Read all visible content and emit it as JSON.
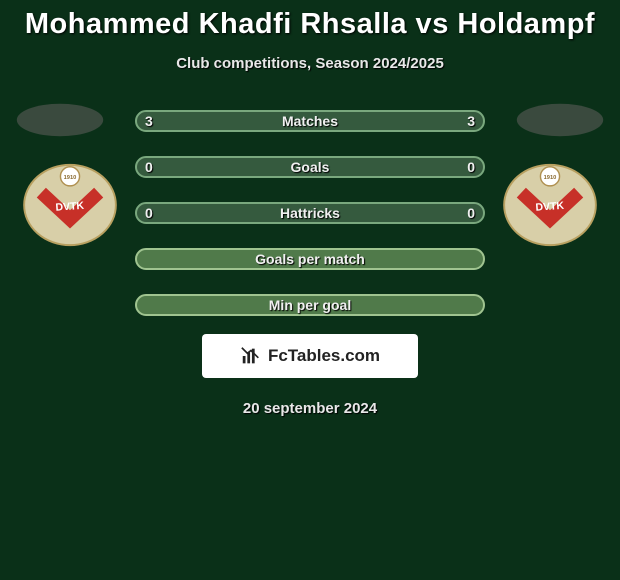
{
  "title": "Mohammed Khadfi Rhsalla vs Holdampf",
  "subtitle": "Club competitions, Season 2024/2025",
  "date": "20 september 2024",
  "logo": {
    "text": "FcTables.com"
  },
  "colors": {
    "background": "#0a3018",
    "avatar_fill": "#3a4a3e",
    "crest_fill": "#d8cfa8",
    "crest_chevron": "#c73028"
  },
  "rows": [
    {
      "label": "Matches",
      "left": "3",
      "right": "3",
      "fill": "#355a3e",
      "border": "#7aa87e",
      "show_values": true
    },
    {
      "label": "Goals",
      "left": "0",
      "right": "0",
      "fill": "#355a3e",
      "border": "#7aa87e",
      "show_values": true
    },
    {
      "label": "Hattricks",
      "left": "0",
      "right": "0",
      "fill": "#355a3e",
      "border": "#7aa87e",
      "show_values": true
    },
    {
      "label": "Goals per match",
      "left": "",
      "right": "",
      "fill": "#507a4a",
      "border": "#a0c490",
      "show_values": false
    },
    {
      "label": "Min per goal",
      "left": "",
      "right": "",
      "fill": "#507a4a",
      "border": "#a0c490",
      "show_values": false
    }
  ]
}
